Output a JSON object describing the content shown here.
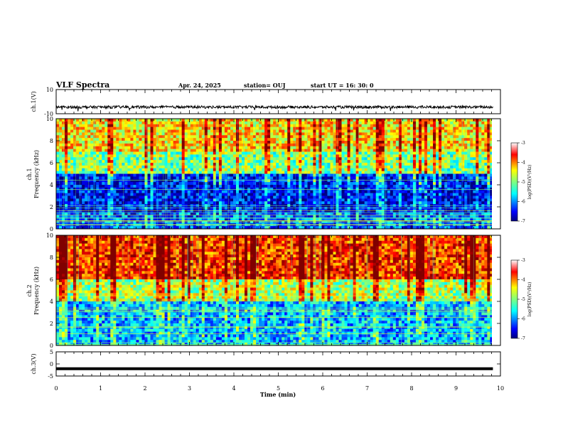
{
  "header": {
    "title": "VLF Spectra",
    "date": "Apr. 24, 2025",
    "station": "station= OUJ",
    "start": "start  UT =   16: 30: 0"
  },
  "chart_data": [
    {
      "type": "line",
      "name": "ch1-waveform",
      "ylabel": "ch.1(V)",
      "ylim": [
        -10,
        10
      ],
      "yticks": [
        "10",
        "-10"
      ],
      "x_unit": "min",
      "xlim": [
        0,
        10
      ],
      "data_extent_min": 9.83,
      "baseline": -4.5
    },
    {
      "type": "heatmap",
      "name": "ch1-spectrogram",
      "ylabel": "ch.1\nFrequency (kHz)",
      "ylim": [
        0,
        10
      ],
      "yticks": [
        "0",
        "2",
        "4",
        "6",
        "8",
        "10"
      ],
      "xlim": [
        0,
        10
      ],
      "colorbar": {
        "label": "log(PSD)(V²/Hz)",
        "range": [
          -7,
          -3
        ],
        "ticks": [
          "-3",
          "-4",
          "-5",
          "-6",
          "-7"
        ]
      },
      "levels_by_band": [
        {
          "band_khz": [
            0,
            1.5
          ],
          "log_psd": -6.2
        },
        {
          "band_khz": [
            1.5,
            5
          ],
          "log_psd": -6.5
        },
        {
          "band_khz": [
            5,
            7
          ],
          "log_psd": -5.0
        },
        {
          "band_khz": [
            7,
            10
          ],
          "log_psd": -4.4
        }
      ]
    },
    {
      "type": "heatmap",
      "name": "ch2-spectrogram",
      "ylabel": "ch.2\nFrequency (kHz)",
      "ylim": [
        0,
        10
      ],
      "yticks": [
        "0",
        "2",
        "4",
        "6",
        "8",
        "10"
      ],
      "xlim": [
        0,
        10
      ],
      "colorbar": {
        "label": "log(PSD)(V²/Hz)",
        "range": [
          -7,
          -3
        ],
        "ticks": [
          "-3",
          "-4",
          "-5",
          "-6",
          "-7"
        ]
      },
      "levels_by_band": [
        {
          "band_khz": [
            0,
            4
          ],
          "log_psd": -5.8
        },
        {
          "band_khz": [
            4,
            6
          ],
          "log_psd": -4.8
        },
        {
          "band_khz": [
            6,
            10
          ],
          "log_psd": -3.7
        }
      ]
    },
    {
      "type": "line",
      "name": "ch3-waveform",
      "ylabel": "ch.3(V)",
      "ylim": [
        -5,
        5
      ],
      "yticks": [
        "5",
        "0",
        "-5"
      ],
      "xlim": [
        0,
        10
      ],
      "data_extent_min": 9.83,
      "baseline": -2.0
    }
  ],
  "xaxis": {
    "label": "Time  (min)",
    "ticks": [
      "0",
      "1",
      "2",
      "3",
      "4",
      "5",
      "6",
      "7",
      "8",
      "9",
      "10"
    ]
  },
  "colors": {
    "colormap": [
      "#00007f",
      "#0000ff",
      "#007fff",
      "#00ffff",
      "#7fff7f",
      "#ffff00",
      "#ff7f00",
      "#ff0000",
      "#7f0000"
    ]
  }
}
